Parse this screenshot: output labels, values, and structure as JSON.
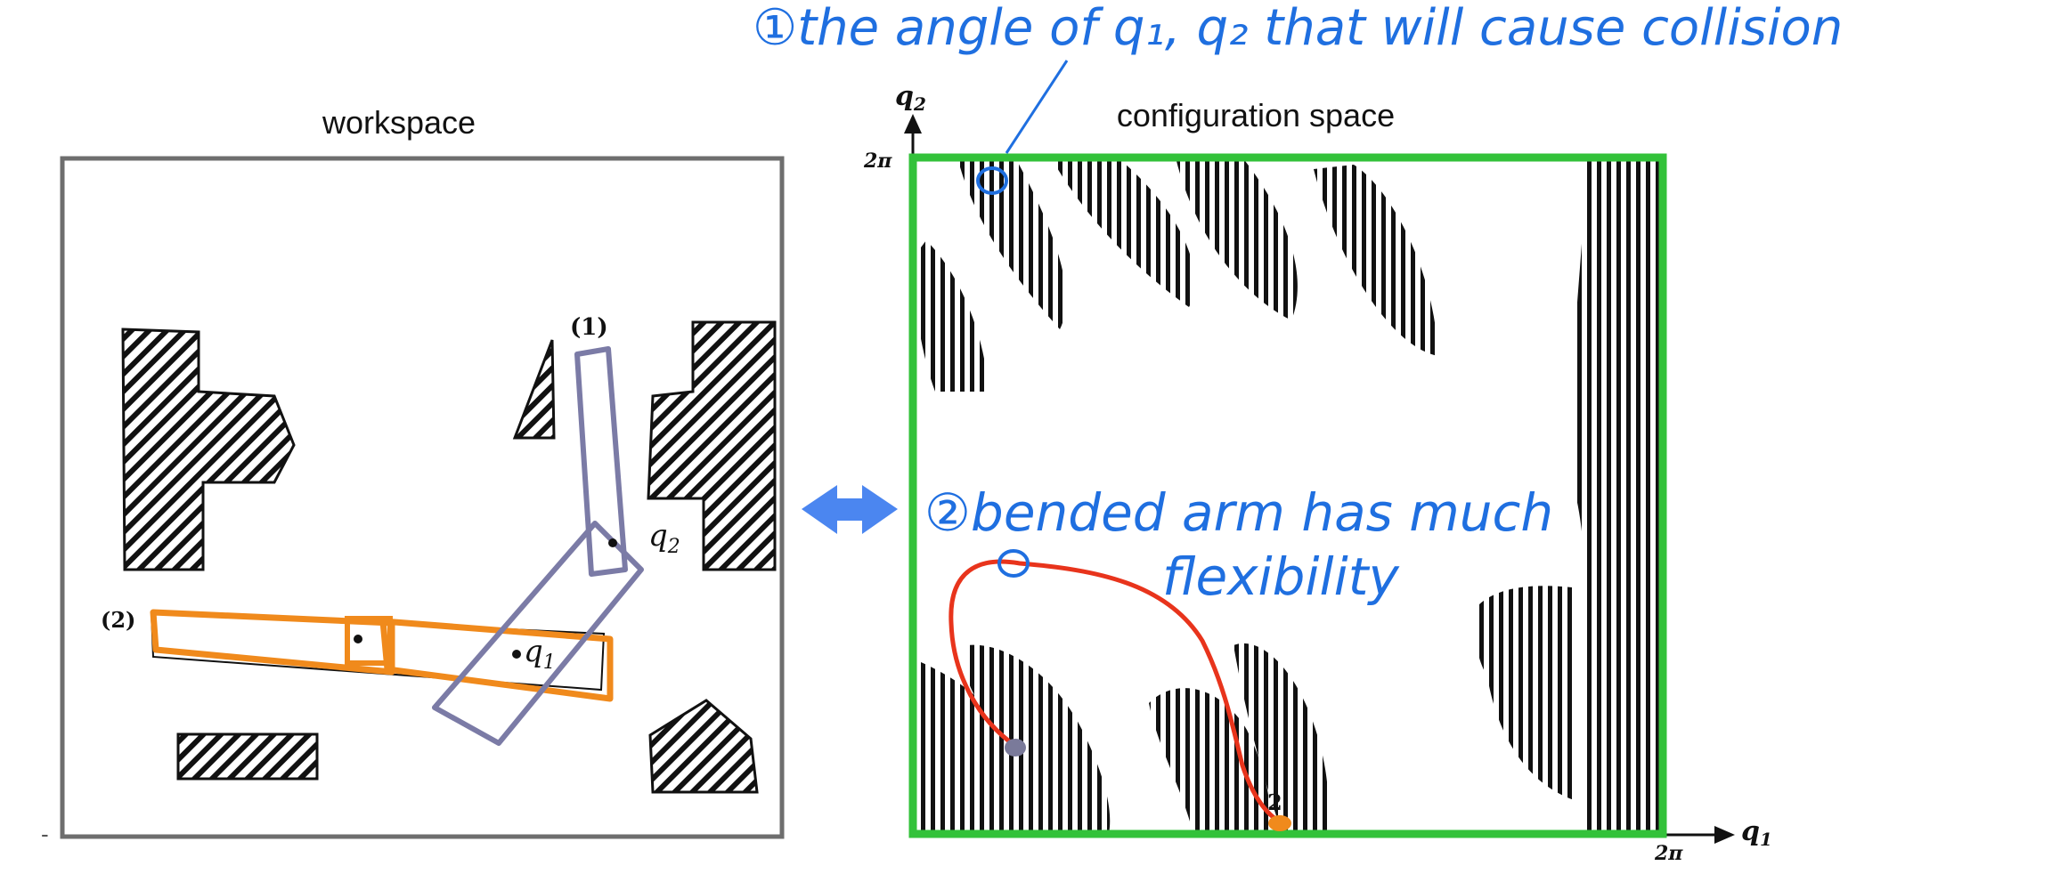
{
  "titles": {
    "workspace": "workspace",
    "cspace": "configuration space"
  },
  "workspace": {
    "labels": {
      "arm1": "(1)",
      "arm2": "(2)",
      "joint_q1": "q",
      "joint_q1_sub": "1",
      "joint_q2": "q",
      "joint_q2_sub": "2"
    },
    "colors": {
      "frame": "#6e6e6e",
      "arm1": "#7b7ba6",
      "arm2": "#f08a1c",
      "obstacle": "#111111"
    }
  },
  "cspace": {
    "axes": {
      "q1": "q",
      "q1_sub": "1",
      "q2": "q",
      "q2_sub": "2",
      "q2_max": "2π",
      "q1_max": "2π",
      "goal_label": "2"
    },
    "colors": {
      "frame": "#33c23a",
      "path": "#e8341c",
      "start_dot": "#7a7a9a",
      "goal_dot": "#f08a1c",
      "annotation": "#1f6fe0"
    }
  },
  "arrow": {
    "color": "#4b86f0",
    "icon": "double-arrow"
  },
  "annotations": {
    "note1": "①the angle of q₁, q₂ that will cause collision",
    "note2_line1": "②bended arm has much",
    "note2_line2": "flexibility"
  },
  "misc": {
    "stray_mark": "-"
  }
}
